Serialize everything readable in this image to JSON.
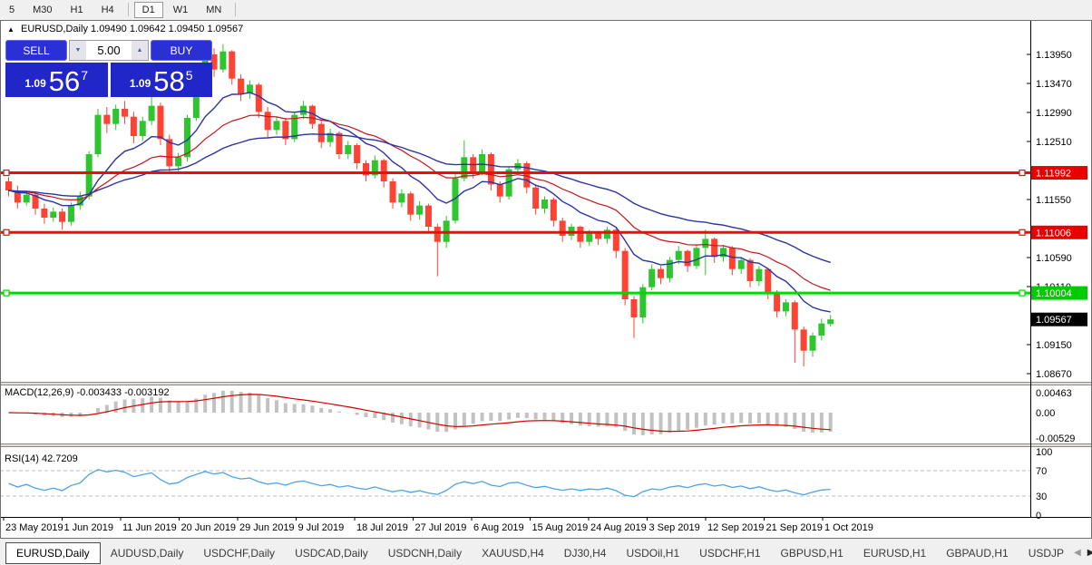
{
  "colors": {
    "candle_up": "#2ec52e",
    "candle_down": "#fd4334",
    "hline_red": "#ee0d0d",
    "hline_green": "#00d800",
    "ma_navy": "#2a34a4",
    "ma_red": "#c4161c",
    "macd_bar": "#c2c2c2",
    "macd_signal": "#d40000",
    "rsi_line": "#4da3e8",
    "badge_red": "#e60000",
    "badge_green": "#00cc00",
    "badge_black": "#000000",
    "panel_blue": "#2026c8"
  },
  "toolbar": {
    "timeframes": [
      {
        "label": "5",
        "active": false
      },
      {
        "label": "M30",
        "active": false
      },
      {
        "label": "H1",
        "active": false
      },
      {
        "label": "H4",
        "active": false,
        "sep_after": true
      },
      {
        "label": "D1",
        "active": true
      },
      {
        "label": "W1",
        "active": false
      },
      {
        "label": "MN",
        "active": false,
        "sep_after": true
      }
    ]
  },
  "window": {
    "title": {
      "arrow": "▲",
      "symbol": "EURUSD,Daily",
      "ohlc": "1.09490 1.09642 1.09450 1.09567"
    },
    "trade_panel": {
      "sell_label": "SELL",
      "buy_label": "BUY",
      "volume": "5.00",
      "spin_down": "▼",
      "spin_up": "▲",
      "sell_price": {
        "prefix": "1.09",
        "big": "56",
        "sup": "7"
      },
      "buy_price": {
        "prefix": "1.09",
        "big": "58",
        "sup": "5"
      }
    }
  },
  "price_axis": {
    "ticks": [
      "1.13950",
      "1.13470",
      "1.12990",
      "1.12510",
      "1.11550",
      "1.10590",
      "1.10110",
      "1.09150",
      "1.08670"
    ],
    "badges": [
      {
        "label": "1.11992",
        "value": 1.11992,
        "color": "#e60000"
      },
      {
        "label": "1.11006",
        "value": 1.11006,
        "color": "#e60000"
      },
      {
        "label": "1.10004",
        "value": 1.10004,
        "color": "#00cc00"
      },
      {
        "label": "1.09567",
        "value": 1.09567,
        "color": "#000000"
      }
    ]
  },
  "macd_panel": {
    "label": "MACD(12,26,9) -0.003433 -0.003192",
    "axis": [
      "0.00463",
      "0.00",
      "-0.00529"
    ]
  },
  "rsi_panel": {
    "label": "RSI(14) 42.7209",
    "axis": [
      "100",
      "70",
      "30",
      "0"
    ]
  },
  "date_axis": {
    "labels": [
      "23 May 2019",
      "1 Jun 2019",
      "11 Jun 2019",
      "20 Jun 2019",
      "29 Jun 2019",
      "9 Jul 2019",
      "18 Jul 2019",
      "27 Jul 2019",
      "6 Aug 2019",
      "15 Aug 2019",
      "24 Aug 2019",
      "3 Sep 2019",
      "12 Sep 2019",
      "21 Sep 2019",
      "1 Oct 2019"
    ]
  },
  "tabs": {
    "items": [
      {
        "label": "EURUSD,Daily",
        "active": true
      },
      {
        "label": "AUDUSD,Daily",
        "active": false
      },
      {
        "label": "USDCHF,Daily",
        "active": false
      },
      {
        "label": "USDCAD,Daily",
        "active": false
      },
      {
        "label": "USDCNH,Daily",
        "active": false
      },
      {
        "label": "XAUUSD,H4",
        "active": false
      },
      {
        "label": "DJ30,H4",
        "active": false
      },
      {
        "label": "USDOil,H1",
        "active": false
      },
      {
        "label": "USDCHF,H1",
        "active": false
      },
      {
        "label": "GBPUSD,H1",
        "active": false
      },
      {
        "label": "EURUSD,H1",
        "active": false
      },
      {
        "label": "GBPAUD,H1",
        "active": false
      },
      {
        "label": "USDJP",
        "active": false
      }
    ],
    "scroll_left": "◀",
    "scroll_right": "▶"
  },
  "chart_data": {
    "type": "candlestick",
    "symbol": "EURUSD",
    "timeframe": "Daily",
    "title": "EURUSD,Daily 1.09490 1.09642 1.09450 1.09567",
    "ylim": [
      1.0855,
      1.1425
    ],
    "price_tick_step": 0.0048,
    "current_price": 1.09567,
    "hlines": [
      {
        "price": 1.11992,
        "color": "#ee0d0d"
      },
      {
        "price": 1.11006,
        "color": "#ee0d0d"
      },
      {
        "price": 1.10004,
        "color": "#00d800"
      }
    ],
    "moving_averages": [
      {
        "type": "ema",
        "period": 10,
        "color": "#2a34a4"
      },
      {
        "type": "ema",
        "period": 21,
        "color": "#c4161c"
      },
      {
        "type": "ema",
        "period": 40,
        "color": "#2a34a4"
      }
    ],
    "indicators": [
      {
        "name": "MACD",
        "fast": 12,
        "slow": 26,
        "signal": 9,
        "values_label": [
          -0.003433,
          -0.003192
        ]
      },
      {
        "name": "RSI",
        "period": 14,
        "value": 42.7209,
        "levels": [
          70,
          30
        ]
      }
    ],
    "x_tick_labels": [
      "23 May 2019",
      "1 Jun 2019",
      "11 Jun 2019",
      "20 Jun 2019",
      "29 Jun 2019",
      "9 Jul 2019",
      "18 Jul 2019",
      "27 Jul 2019",
      "6 Aug 2019",
      "15 Aug 2019",
      "24 Aug 2019",
      "3 Sep 2019",
      "12 Sep 2019",
      "21 Sep 2019",
      "1 Oct 2019"
    ],
    "candles": [
      [
        1.1185,
        1.1192,
        1.116,
        1.117
      ],
      [
        1.117,
        1.1178,
        1.114,
        1.115
      ],
      [
        1.115,
        1.117,
        1.1145,
        1.1163
      ],
      [
        1.1163,
        1.1168,
        1.113,
        1.114
      ],
      [
        1.114,
        1.1148,
        1.1115,
        1.1125
      ],
      [
        1.1125,
        1.1142,
        1.1118,
        1.1135
      ],
      [
        1.1135,
        1.114,
        1.1105,
        1.1118
      ],
      [
        1.1118,
        1.115,
        1.1112,
        1.1145
      ],
      [
        1.1145,
        1.1168,
        1.1138,
        1.116
      ],
      [
        1.116,
        1.1235,
        1.1155,
        1.123
      ],
      [
        1.123,
        1.1305,
        1.1225,
        1.1295
      ],
      [
        1.1295,
        1.1308,
        1.1265,
        1.128
      ],
      [
        1.128,
        1.1312,
        1.127,
        1.1305
      ],
      [
        1.1305,
        1.1318,
        1.128,
        1.1292
      ],
      [
        1.1292,
        1.13,
        1.1248,
        1.126
      ],
      [
        1.126,
        1.1292,
        1.1252,
        1.1285
      ],
      [
        1.1285,
        1.135,
        1.1278,
        1.131
      ],
      [
        1.131,
        1.1315,
        1.1245,
        1.1255
      ],
      [
        1.1255,
        1.1262,
        1.1198,
        1.121
      ],
      [
        1.121,
        1.1232,
        1.12,
        1.1225
      ],
      [
        1.1225,
        1.1295,
        1.1218,
        1.129
      ],
      [
        1.129,
        1.1348,
        1.1285,
        1.134
      ],
      [
        1.134,
        1.14,
        1.1332,
        1.1395
      ],
      [
        1.1395,
        1.1405,
        1.1358,
        1.137
      ],
      [
        1.137,
        1.1412,
        1.1365,
        1.14
      ],
      [
        1.14,
        1.1402,
        1.1345,
        1.1355
      ],
      [
        1.1355,
        1.1362,
        1.1318,
        1.133
      ],
      [
        1.133,
        1.1352,
        1.1322,
        1.1345
      ],
      [
        1.1345,
        1.1348,
        1.129,
        1.13
      ],
      [
        1.13,
        1.1308,
        1.1258,
        1.127
      ],
      [
        1.127,
        1.1292,
        1.1262,
        1.1285
      ],
      [
        1.1285,
        1.129,
        1.1245,
        1.1255
      ],
      [
        1.1255,
        1.13,
        1.125,
        1.1295
      ],
      [
        1.1295,
        1.1318,
        1.1288,
        1.131
      ],
      [
        1.131,
        1.1312,
        1.1272,
        1.128
      ],
      [
        1.128,
        1.1285,
        1.124,
        1.125
      ],
      [
        1.125,
        1.1272,
        1.1242,
        1.1265
      ],
      [
        1.1265,
        1.1268,
        1.1222,
        1.123
      ],
      [
        1.123,
        1.1252,
        1.1222,
        1.1245
      ],
      [
        1.1245,
        1.1248,
        1.1205,
        1.1215
      ],
      [
        1.1215,
        1.122,
        1.1185,
        1.1195
      ],
      [
        1.1195,
        1.1228,
        1.119,
        1.122
      ],
      [
        1.122,
        1.1222,
        1.1175,
        1.1185
      ],
      [
        1.1185,
        1.119,
        1.114,
        1.115
      ],
      [
        1.115,
        1.1172,
        1.1142,
        1.1165
      ],
      [
        1.1165,
        1.1168,
        1.112,
        1.113
      ],
      [
        1.113,
        1.1152,
        1.1122,
        1.1145
      ],
      [
        1.1145,
        1.1148,
        1.11,
        1.111
      ],
      [
        1.111,
        1.1115,
        1.1028,
        1.1085
      ],
      [
        1.1085,
        1.1128,
        1.1075,
        1.112
      ],
      [
        1.112,
        1.1198,
        1.1115,
        1.119
      ],
      [
        1.119,
        1.1253,
        1.1185,
        1.1225
      ],
      [
        1.1225,
        1.123,
        1.119,
        1.12
      ],
      [
        1.12,
        1.1238,
        1.1195,
        1.123
      ],
      [
        1.123,
        1.1233,
        1.117,
        1.118
      ],
      [
        1.118,
        1.1185,
        1.115,
        1.116
      ],
      [
        1.116,
        1.121,
        1.1155,
        1.1205
      ],
      [
        1.1205,
        1.1222,
        1.1198,
        1.1215
      ],
      [
        1.1215,
        1.1218,
        1.1165,
        1.1175
      ],
      [
        1.1175,
        1.118,
        1.113,
        1.114
      ],
      [
        1.114,
        1.116,
        1.1132,
        1.1155
      ],
      [
        1.1155,
        1.1158,
        1.111,
        1.112
      ],
      [
        1.112,
        1.1125,
        1.1085,
        1.1095
      ],
      [
        1.1095,
        1.1115,
        1.1088,
        1.111
      ],
      [
        1.111,
        1.1112,
        1.1075,
        1.1085
      ],
      [
        1.1085,
        1.1105,
        1.1078,
        1.11
      ],
      [
        1.11,
        1.1103,
        1.108,
        1.109
      ],
      [
        1.109,
        1.111,
        1.1082,
        1.1105
      ],
      [
        1.1105,
        1.1108,
        1.1058,
        1.107
      ],
      [
        1.107,
        1.1075,
        1.098,
        1.099
      ],
      [
        1.099,
        1.0995,
        1.0926,
        1.096
      ],
      [
        1.096,
        1.1015,
        1.095,
        1.101
      ],
      [
        1.101,
        1.1048,
        1.1005,
        1.104
      ],
      [
        1.104,
        1.1045,
        1.1015,
        1.1025
      ],
      [
        1.1025,
        1.106,
        1.1018,
        1.1055
      ],
      [
        1.1055,
        1.1078,
        1.1048,
        1.107
      ],
      [
        1.107,
        1.1072,
        1.1035,
        1.1045
      ],
      [
        1.1045,
        1.108,
        1.104,
        1.1075
      ],
      [
        1.1075,
        1.1105,
        1.103,
        1.109
      ],
      [
        1.109,
        1.1092,
        1.105,
        1.106
      ],
      [
        1.106,
        1.108,
        1.1052,
        1.1075
      ],
      [
        1.1075,
        1.1078,
        1.103,
        1.104
      ],
      [
        1.104,
        1.106,
        1.1032,
        1.1055
      ],
      [
        1.1055,
        1.1058,
        1.101,
        1.102
      ],
      [
        1.102,
        1.1045,
        1.1012,
        1.104
      ],
      [
        1.104,
        1.1042,
        1.099,
        1.1
      ],
      [
        1.1,
        1.1005,
        1.096,
        1.097
      ],
      [
        1.097,
        1.099,
        1.0962,
        1.0985
      ],
      [
        1.0985,
        1.0988,
        1.0885,
        1.094
      ],
      [
        1.094,
        1.0945,
        1.0879,
        1.0905
      ],
      [
        1.0905,
        1.0935,
        1.0895,
        1.093
      ],
      [
        1.093,
        1.0958,
        1.0922,
        1.095
      ],
      [
        1.0949,
        1.09642,
        1.0945,
        1.09567
      ]
    ]
  }
}
